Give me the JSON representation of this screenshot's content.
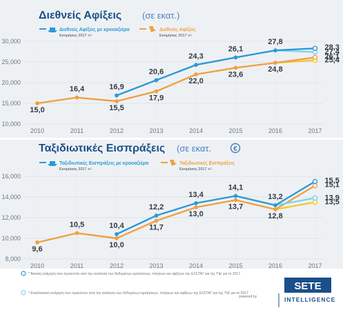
{
  "chart_data": [
    {
      "type": "line",
      "title": "Διεθνείς Αφίξεις",
      "unit": "(σε εκατ.)",
      "x": [
        "2010",
        "2011",
        "2012",
        "2013",
        "2014",
        "2015",
        "2016",
        "2017"
      ],
      "ylim": [
        10000,
        30000
      ],
      "yticks": [
        "10,000",
        "15,000",
        "20,000",
        "25,000",
        "30,000"
      ],
      "ytick_values": [
        10000,
        15000,
        20000,
        25000,
        30000
      ],
      "grid": true,
      "legend_position": "top",
      "series": [
        {
          "name": "Διεθνείς Αφίξεις με κρουαζιέρα",
          "sub": "Εκτιμήσεις 2017 +/-",
          "color": "#2a9ad8",
          "values": [
            null,
            null,
            16.9,
            20.6,
            24.3,
            26.1,
            27.8,
            28.3
          ],
          "labels": [
            null,
            null,
            "16,9",
            "20,6",
            "24,3",
            "26,1",
            "27,8",
            "28,3"
          ],
          "alt_2017": 27.4,
          "alt_label": "27,4",
          "alt_color": "#7dd3ee"
        },
        {
          "name": "Διεθνείς Αφίξεις",
          "sub": "Εκτιμήσεις 2017 +/-",
          "color": "#f0a040",
          "values": [
            15.0,
            16.4,
            15.5,
            17.9,
            22.0,
            23.6,
            24.8,
            26.1
          ],
          "labels": [
            "15,0",
            "16,4",
            "15,5",
            "17,9",
            "22,0",
            "23,6",
            "24,8",
            "26,1"
          ],
          "alt_2017": 25.4,
          "alt_label": "25,4",
          "alt_color": "#f7c72b"
        }
      ]
    },
    {
      "type": "line",
      "title": "Ταξιδιωτικές Εισπράξεις",
      "unit": "(σε εκατ.",
      "currency_symbol": "€",
      "x": [
        "2010",
        "2011",
        "2012",
        "2013",
        "2014",
        "2015",
        "2016",
        "2017"
      ],
      "ylim": [
        8000,
        16000
      ],
      "yticks": [
        "8,000",
        "10,000",
        "12,000",
        "14,000",
        "16,000"
      ],
      "ytick_values": [
        8000,
        10000,
        12000,
        14000,
        16000
      ],
      "grid": true,
      "legend_position": "top",
      "series": [
        {
          "name": "Ταξιδιωτικές Εισπράξεις με κρουαζιέρα",
          "sub": "Εκτιμήσεις 2017 +/-",
          "color": "#2a9ad8",
          "values": [
            null,
            null,
            10.4,
            12.2,
            13.4,
            14.1,
            13.2,
            15.5
          ],
          "labels": [
            null,
            null,
            "10,4",
            "12,2",
            "13,4",
            "14,1",
            "13,2",
            "15,5"
          ],
          "alt_2017": 13.9,
          "alt_label": "13,9",
          "alt_color": "#7dd3ee"
        },
        {
          "name": "Ταξιδιωτικές Εισπράξεις",
          "sub": "Εκτιμήσεις 2017 +/-",
          "color": "#f0a040",
          "values": [
            9.6,
            10.5,
            10.0,
            11.7,
            13.0,
            13.7,
            12.8,
            15.1
          ],
          "labels": [
            "9,6",
            "10,5",
            "10,0",
            "11,7",
            "13,0",
            "13,7",
            "12,8",
            "15,1"
          ],
          "alt_2017": 13.5,
          "alt_label": "13,5",
          "alt_color": "#f7c72b"
        }
      ]
    }
  ],
  "footer": {
    "note1": "* Βασική εκτίμηση που προκύπτει από την ανάλυση των δεδομένων κρατήσεων, πτήσεων και αφίξεων της ΕΛΣΤΑΤ και της ΤτΕ για το 2017",
    "note2": "* Εναλλακτική εκτίμηση που προκύπτει από την ανάλυση των δεδομένων κρατήσεων, πτήσεων και αφίξεων της ΕΛΣΤΑΤ και της ΤτΕ για το 2017",
    "powered": "powered by",
    "brand": "SETE",
    "brand_sub": "INTELLIGENCE",
    "colors": {
      "note1": "#2a9ad8",
      "note2": "#7dd3ee",
      "brand_bg": "#1b4f8a"
    }
  }
}
